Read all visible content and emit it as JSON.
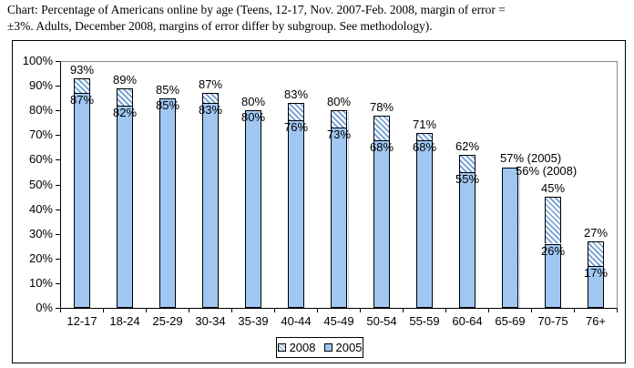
{
  "title": {
    "line1": "Chart: Percentage of Americans online by age (Teens, 12-17, Nov. 2007-Feb. 2008, margin of error =",
    "line2": "±3%. Adults, December 2008, margins of error differ by subgroup. See methodology)."
  },
  "chart_data": {
    "type": "bar",
    "title": "Percentage of Americans online by age",
    "xlabel": "",
    "ylabel": "",
    "ylim": [
      0,
      100
    ],
    "ytick_step": 10,
    "ytick_labels": [
      "0%",
      "10%",
      "20%",
      "30%",
      "40%",
      "50%",
      "60%",
      "70%",
      "80%",
      "90%",
      "100%"
    ],
    "grid": false,
    "legend_position": "bottom-center",
    "categories": [
      "12-17",
      "18-24",
      "25-29",
      "30-34",
      "35-39",
      "40-44",
      "45-49",
      "50-54",
      "55-59",
      "60-64",
      "65-69",
      "70-75",
      "76+"
    ],
    "series": [
      {
        "name": "2008",
        "style": "hatched",
        "values": [
          93,
          89,
          85,
          87,
          80,
          83,
          80,
          78,
          71,
          62,
          56,
          45,
          27
        ]
      },
      {
        "name": "2005",
        "style": "solid",
        "values": [
          87,
          82,
          85,
          83,
          80,
          76,
          73,
          68,
          68,
          55,
          57,
          26,
          17
        ]
      }
    ],
    "bars": [
      {
        "category": "12-17",
        "top_label": "93%",
        "inner_label": "87%"
      },
      {
        "category": "18-24",
        "top_label": "89%",
        "inner_label": "82%"
      },
      {
        "category": "25-29",
        "top_label": "85%",
        "inner_label": "85%"
      },
      {
        "category": "30-34",
        "top_label": "87%",
        "inner_label": "83%"
      },
      {
        "category": "35-39",
        "top_label": "80%",
        "inner_label": "80%"
      },
      {
        "category": "40-44",
        "top_label": "83%",
        "inner_label": "76%"
      },
      {
        "category": "45-49",
        "top_label": "80%",
        "inner_label": "73%",
        "ghost_edge": 80
      },
      {
        "category": "50-54",
        "top_label": "78%",
        "inner_label": "68%"
      },
      {
        "category": "55-59",
        "top_label": "71%",
        "inner_label": "68%"
      },
      {
        "category": "60-64",
        "top_label": "62%",
        "inner_label": "55%"
      },
      {
        "category": "65-69",
        "top_label": "57% (2005)",
        "inner_label": "56% (2008)",
        "label_layout": "side",
        "ghost_edge": 56
      },
      {
        "category": "70-75",
        "top_label": "45%",
        "inner_label": "26%"
      },
      {
        "category": "76+",
        "top_label": "27%",
        "inner_label": "17%"
      }
    ],
    "colors": {
      "bar_fill": "#9FC7F2",
      "hatch_line": "#6C9BD4",
      "bar_border": "#000000",
      "axis": "#000000",
      "plot_frame": "#8A8A8A",
      "ghost_edge": "#7FA9DE"
    }
  },
  "legend": {
    "items": [
      {
        "label": "2008",
        "swatch": "hatched"
      },
      {
        "label": "2005",
        "swatch": "solid"
      }
    ]
  }
}
